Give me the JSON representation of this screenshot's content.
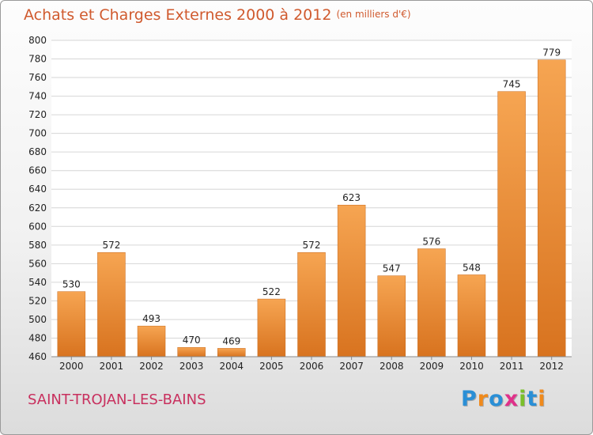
{
  "title": "Achats et Charges Externes 2000 à 2012",
  "unit_note": "(en milliers d'€)",
  "city": "SAINT-TROJAN-LES-BAINS",
  "logo": {
    "text": "Proxiti",
    "letters": [
      {
        "ch": "P",
        "color": "#2a8fd6"
      },
      {
        "ch": "r",
        "color": "#f08a1c"
      },
      {
        "ch": "o",
        "color": "#2a8fd6"
      },
      {
        "ch": "x",
        "color": "#e0318a"
      },
      {
        "ch": "i",
        "color": "#7abf2a"
      },
      {
        "ch": "t",
        "color": "#2a8fd6"
      },
      {
        "ch": "i",
        "color": "#f08a1c"
      }
    ]
  },
  "colors": {
    "bar_top": "#f6a552",
    "bar_bottom": "#d8731f",
    "bar_edge": "#c86a1d",
    "grid": "#d6d6d6",
    "plot_bg": "#ffffff"
  },
  "chart_data": {
    "type": "bar",
    "title": "Achats et Charges Externes 2000 à 2012",
    "categories": [
      "2000",
      "2001",
      "2002",
      "2003",
      "2004",
      "2005",
      "2006",
      "2007",
      "2008",
      "2009",
      "2010",
      "2011",
      "2012"
    ],
    "values": [
      530,
      572,
      493,
      470,
      469,
      522,
      572,
      623,
      547,
      576,
      548,
      745,
      779
    ],
    "ylim": [
      460,
      800
    ],
    "yticks": [
      460,
      480,
      500,
      520,
      540,
      560,
      580,
      600,
      620,
      640,
      660,
      680,
      700,
      720,
      740,
      760,
      780,
      800
    ],
    "grid": true,
    "xlabel": "",
    "ylabel": ""
  }
}
